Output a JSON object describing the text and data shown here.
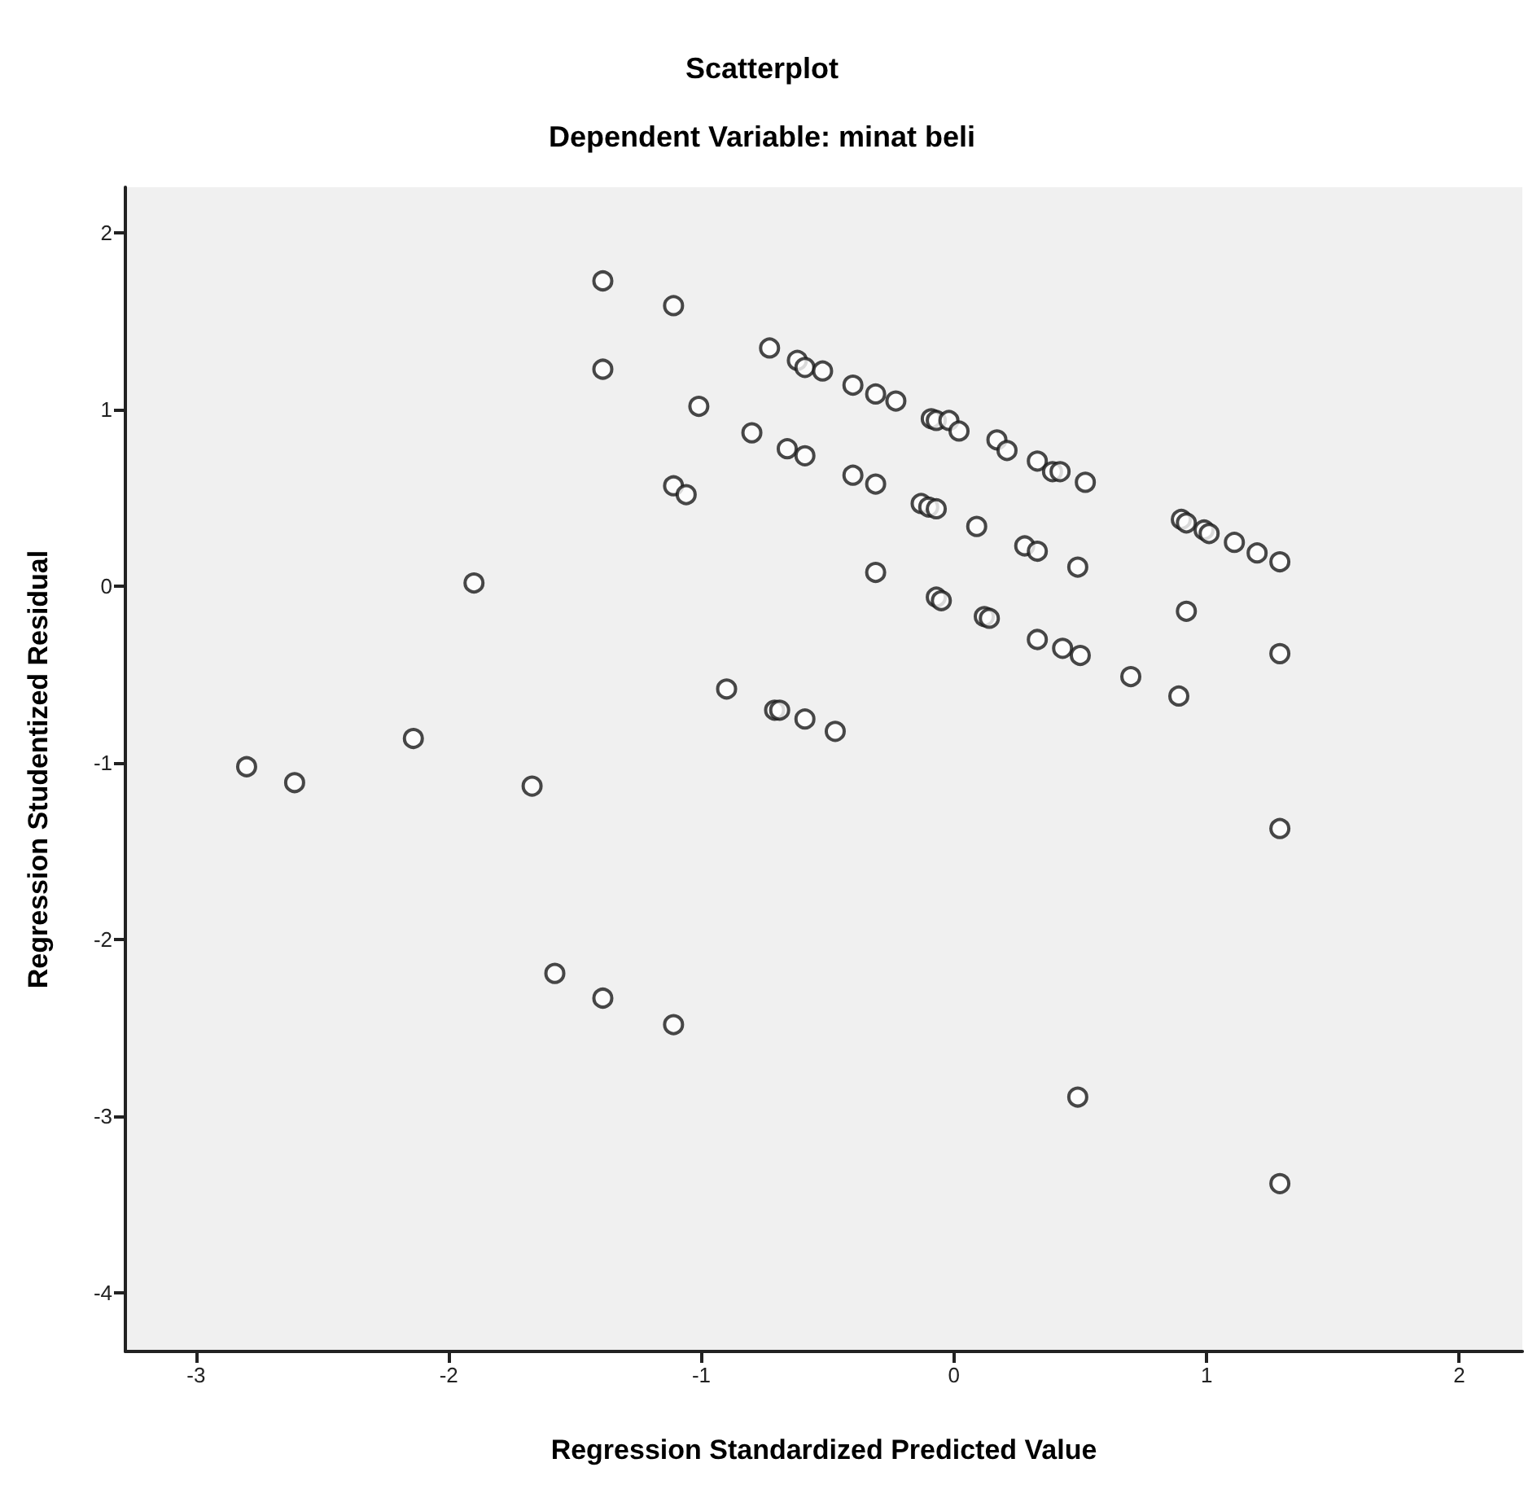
{
  "chart_data": {
    "type": "scatter",
    "title": "Scatterplot",
    "subtitle": "Dependent Variable: minat beli",
    "xlabel": "Regression Standardized Predicted Value",
    "ylabel": "Regression Studentized Residual",
    "x": [
      -1.39,
      -1.11,
      -1.39,
      -1.01,
      -0.8,
      -1.11,
      -1.06,
      -1.9,
      -0.9,
      -2.8,
      -2.61,
      -2.14,
      -1.67,
      -1.58,
      -1.39,
      -1.11,
      -0.73,
      -0.62,
      -0.59,
      -0.52,
      -0.4,
      -0.31,
      -0.23,
      -0.09,
      -0.07,
      -0.02,
      0.02,
      0.17,
      0.21,
      0.33,
      0.39,
      0.42,
      0.52,
      0.9,
      0.92,
      0.99,
      1.01,
      1.11,
      1.2,
      1.29,
      -0.66,
      -0.59,
      -0.4,
      -0.31,
      -0.13,
      -0.1,
      -0.07,
      0.09,
      0.28,
      0.33,
      0.49,
      -0.31,
      -0.07,
      -0.05,
      0.12,
      0.14,
      0.33,
      0.43,
      0.5,
      0.7,
      0.89,
      0.92,
      1.29,
      -0.71,
      -0.69,
      -0.59,
      -0.47,
      1.29,
      0.49,
      1.29
    ],
    "values": [
      1.73,
      1.59,
      1.23,
      1.02,
      0.87,
      0.57,
      0.52,
      0.02,
      -0.58,
      -1.02,
      -1.11,
      -0.86,
      -1.13,
      -2.19,
      -2.33,
      -2.48,
      1.35,
      1.28,
      1.24,
      1.22,
      1.14,
      1.09,
      1.05,
      0.95,
      0.94,
      0.94,
      0.88,
      0.83,
      0.77,
      0.71,
      0.65,
      0.65,
      0.59,
      0.38,
      0.36,
      0.32,
      0.3,
      0.25,
      0.19,
      0.14,
      0.78,
      0.74,
      0.63,
      0.58,
      0.47,
      0.45,
      0.44,
      0.34,
      0.23,
      0.2,
      0.11,
      0.08,
      -0.06,
      -0.08,
      -0.17,
      -0.18,
      -0.3,
      -0.35,
      -0.39,
      -0.51,
      -0.62,
      -0.14,
      -0.38,
      -0.7,
      -0.7,
      -0.75,
      -0.82,
      -1.37,
      -2.89,
      -3.38
    ],
    "color": "#1a1a1a",
    "marker": "circle",
    "grid": false,
    "xlim": [
      -3.28,
      2.25
    ],
    "ylim": [
      -4.33,
      2.26
    ],
    "xticks": [
      -3,
      -2,
      -1,
      0,
      1,
      2
    ],
    "yticks": [
      -4,
      -3,
      -2,
      -1,
      0,
      1,
      2
    ]
  }
}
